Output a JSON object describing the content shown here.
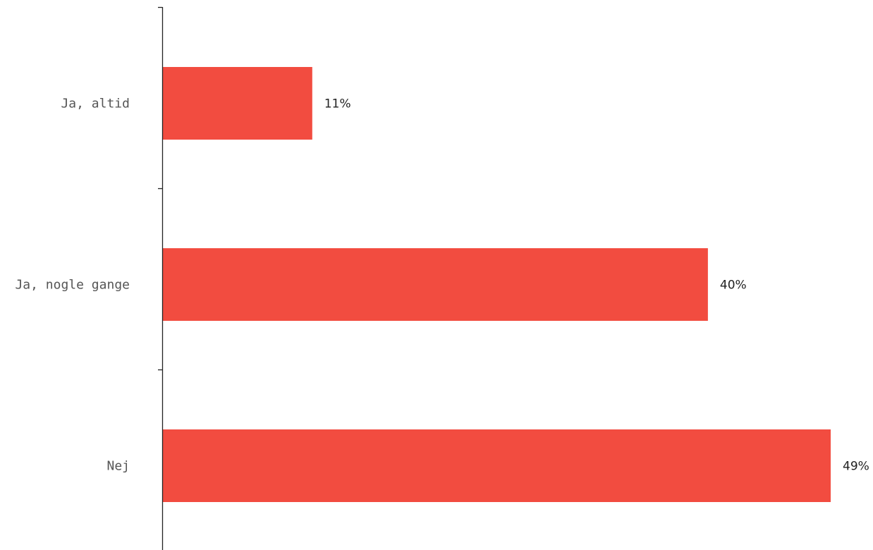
{
  "chart_data": {
    "type": "bar",
    "orientation": "horizontal",
    "categories": [
      "Ja, altid",
      "Ja, nogle gange",
      "Nej"
    ],
    "values": [
      11,
      40,
      49
    ],
    "value_labels": [
      "11%",
      "40%",
      "49%"
    ],
    "unit": "%",
    "xlim": [
      0,
      49
    ],
    "title": "",
    "xlabel": "",
    "ylabel": "",
    "grid": false,
    "legend": "none"
  },
  "colors": {
    "bar": "#f24c40",
    "axis": "#222222",
    "category_text": "#555555",
    "value_text": "#222222",
    "background": "#ffffff"
  }
}
